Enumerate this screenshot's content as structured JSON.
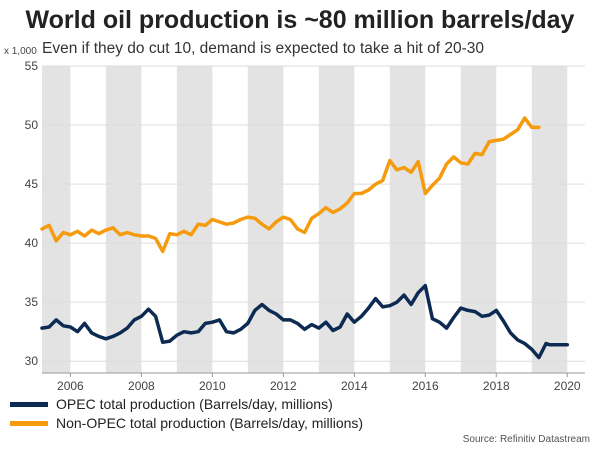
{
  "header": {
    "title": "World oil production is ~80 million barrels/day",
    "subtitle": "Even if they do cut 10, demand is expected to take a hit of 20-30",
    "units": "x 1,000"
  },
  "source": "Source: Refinitiv Datastream",
  "colors": {
    "opec": "#0d2b52",
    "non_opec": "#f59b0d",
    "band": "#e3e3e3",
    "grid": "#dddddd"
  },
  "chart_data": {
    "type": "line",
    "title": "World oil production is ~80 million barrels/day",
    "subtitle": "Even if they do cut 10, demand is expected to take a hit of 20-30",
    "ylabel": "x 1,000",
    "xlim": [
      2005.2,
      2020.5
    ],
    "ylim": [
      29,
      55
    ],
    "yticks": [
      30,
      35,
      40,
      45,
      50,
      55
    ],
    "xticks": [
      2006,
      2008,
      2010,
      2012,
      2014,
      2016,
      2018,
      2020
    ],
    "shaded_years": [
      2005,
      2007,
      2009,
      2011,
      2013,
      2015,
      2017,
      2019
    ],
    "legend_position": "bottom-left",
    "series": [
      {
        "name": "OPEC total production (Barrels/day, millions)",
        "x": [
          2005.2,
          2005.4,
          2005.6,
          2005.8,
          2006.0,
          2006.2,
          2006.4,
          2006.6,
          2006.8,
          2007.0,
          2007.2,
          2007.4,
          2007.6,
          2007.8,
          2008.0,
          2008.2,
          2008.4,
          2008.6,
          2008.8,
          2009.0,
          2009.2,
          2009.4,
          2009.6,
          2009.8,
          2010.0,
          2010.2,
          2010.4,
          2010.6,
          2010.8,
          2011.0,
          2011.2,
          2011.4,
          2011.6,
          2011.8,
          2012.0,
          2012.2,
          2012.4,
          2012.6,
          2012.8,
          2013.0,
          2013.2,
          2013.4,
          2013.6,
          2013.8,
          2014.0,
          2014.2,
          2014.4,
          2014.6,
          2014.8,
          2015.0,
          2015.2,
          2015.4,
          2015.6,
          2015.8,
          2016.0,
          2016.2,
          2016.4,
          2016.6,
          2016.8,
          2017.0,
          2017.2,
          2017.4,
          2017.6,
          2017.8,
          2018.0,
          2018.2,
          2018.4,
          2018.6,
          2018.8,
          2019.0,
          2019.2,
          2019.4,
          2019.5,
          2019.6,
          2019.7,
          2019.8,
          2019.9,
          2020.0
        ],
        "values": [
          32.8,
          32.9,
          33.5,
          33.0,
          32.9,
          32.5,
          33.2,
          32.4,
          32.1,
          31.9,
          32.1,
          32.4,
          32.8,
          33.5,
          33.8,
          34.4,
          33.8,
          31.6,
          31.7,
          32.2,
          32.5,
          32.4,
          32.5,
          33.2,
          33.3,
          33.5,
          32.5,
          32.4,
          32.7,
          33.2,
          34.3,
          34.8,
          34.3,
          34.0,
          33.5,
          33.5,
          33.2,
          32.7,
          33.1,
          32.8,
          33.3,
          32.6,
          32.9,
          34.0,
          33.3,
          33.8,
          34.5,
          35.3,
          34.6,
          34.7,
          35.0,
          35.6,
          34.8,
          35.8,
          36.4,
          33.6,
          33.3,
          32.8,
          33.7,
          34.5,
          34.3,
          34.2,
          33.8,
          33.9,
          34.3,
          33.4,
          32.4,
          31.8,
          31.5,
          31.0,
          30.3,
          31.5,
          31.4,
          31.4,
          31.4,
          31.4,
          31.4,
          31.4
        ]
      },
      {
        "name": "Non-OPEC total production (Barrels/day, millions)",
        "x": [
          2005.2,
          2005.4,
          2005.6,
          2005.8,
          2006.0,
          2006.2,
          2006.4,
          2006.6,
          2006.8,
          2007.0,
          2007.2,
          2007.4,
          2007.6,
          2007.8,
          2008.0,
          2008.2,
          2008.4,
          2008.6,
          2008.8,
          2009.0,
          2009.2,
          2009.4,
          2009.6,
          2009.8,
          2010.0,
          2010.2,
          2010.4,
          2010.6,
          2010.8,
          2011.0,
          2011.2,
          2011.4,
          2011.6,
          2011.8,
          2012.0,
          2012.2,
          2012.4,
          2012.6,
          2012.8,
          2013.0,
          2013.2,
          2013.4,
          2013.6,
          2013.8,
          2014.0,
          2014.2,
          2014.4,
          2014.6,
          2014.8,
          2015.0,
          2015.2,
          2015.4,
          2015.6,
          2015.8,
          2016.0,
          2016.2,
          2016.4,
          2016.6,
          2016.8,
          2017.0,
          2017.2,
          2017.4,
          2017.6,
          2017.8,
          2018.0,
          2018.2,
          2018.4,
          2018.6,
          2018.8,
          2019.0,
          2019.1,
          2019.2
        ],
        "values": [
          41.2,
          41.5,
          40.2,
          40.9,
          40.7,
          41.0,
          40.6,
          41.1,
          40.8,
          41.1,
          41.3,
          40.7,
          40.9,
          40.7,
          40.6,
          40.6,
          40.4,
          39.3,
          40.8,
          40.7,
          41.0,
          40.7,
          41.6,
          41.5,
          42.0,
          41.8,
          41.6,
          41.7,
          42.0,
          42.2,
          42.1,
          41.6,
          41.2,
          41.8,
          42.2,
          42.0,
          41.2,
          40.9,
          42.1,
          42.5,
          43.0,
          42.6,
          42.9,
          43.4,
          44.2,
          44.2,
          44.5,
          45.0,
          45.3,
          47.0,
          46.2,
          46.4,
          46.0,
          46.9,
          44.2,
          44.9,
          45.5,
          46.7,
          47.3,
          46.8,
          46.7,
          47.6,
          47.5,
          48.6,
          48.7,
          48.8,
          49.2,
          49.6,
          50.6,
          49.8,
          49.8,
          49.8
        ]
      }
    ]
  },
  "legend": {
    "opec": "OPEC total production (Barrels/day, millions)",
    "non_opec": "Non-OPEC total production (Barrels/day, millions)"
  }
}
